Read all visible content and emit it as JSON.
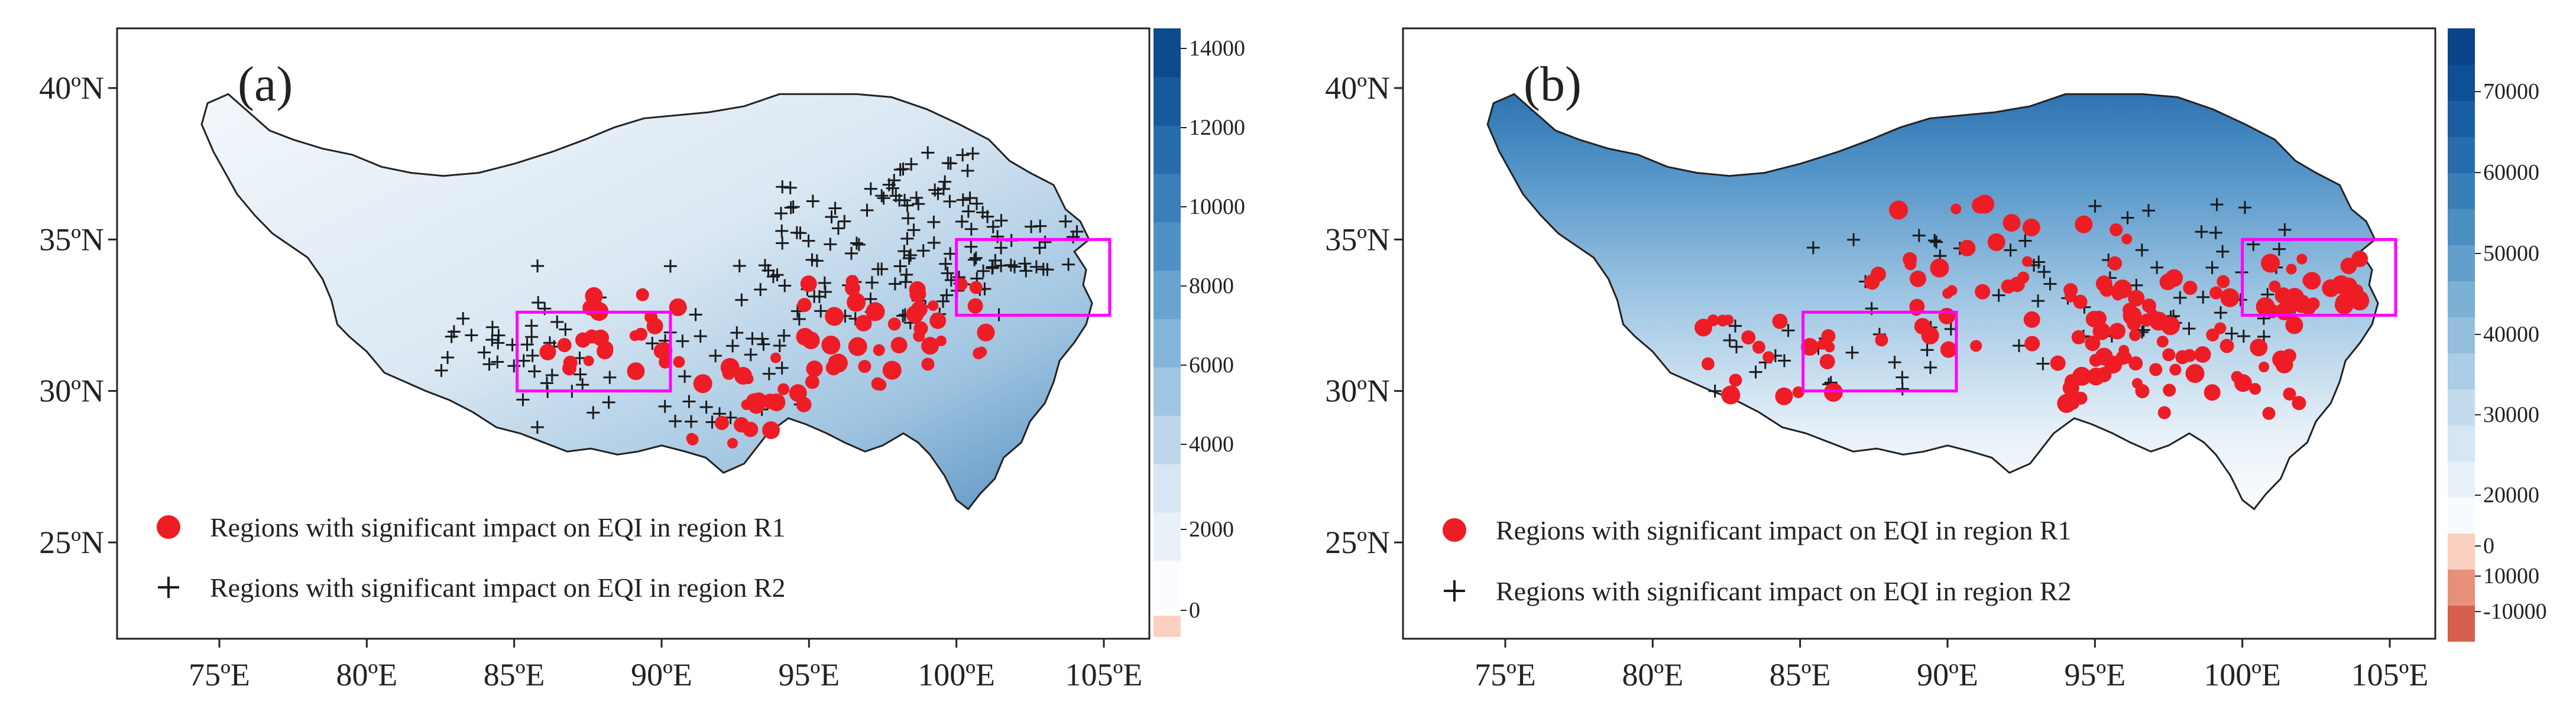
{
  "panels": [
    {
      "label": "(a)",
      "colorbar": {
        "ticks": [
          "14000",
          "12000",
          "10000",
          "8000",
          "6000",
          "4000",
          "2000",
          "0"
        ],
        "colors": [
          "#fbd0c0",
          "#fbfcff",
          "#e9f1f8",
          "#d6e6f2",
          "#bdd6ea",
          "#a0c5e1",
          "#84b5d8",
          "#69a3cf",
          "#4f91c5",
          "#3a7fb9",
          "#276dad",
          "#185a9e",
          "#0d4a8e"
        ]
      },
      "legend": {
        "r1_label": "Regions with significant impact on EQI in region R1",
        "r2_label": "Regions with significant impact on EQI in region R2"
      }
    },
    {
      "label": "(b)",
      "colorbar": {
        "ticks": [
          "70000",
          "60000",
          "50000",
          "40000",
          "30000",
          "20000",
          "10000",
          "0",
          "-10000"
        ],
        "colors": [
          "#d6604d",
          "#e7917b",
          "#fbd0c0",
          "#f7fbff",
          "#e9f1f8",
          "#d6e6f2",
          "#c3dbed",
          "#abcde5",
          "#93bfdd",
          "#7ab1d5",
          "#62a0cb",
          "#4b8fc1",
          "#387fb7",
          "#276dad",
          "#195ea1",
          "#0f4f93",
          "#0a4488"
        ]
      },
      "legend": {
        "r1_label": "Regions with significant impact on EQI in region R1",
        "r2_label": "Regions with significant impact on EQI in region R2"
      }
    }
  ],
  "axes": {
    "x_ticks": [
      "75ºE",
      "80ºE",
      "85ºE",
      "90ºE",
      "95ºE",
      "100ºE",
      "105ºE"
    ],
    "y_ticks": [
      "40ºN",
      "35ºN",
      "30ºN",
      "25ºN"
    ]
  },
  "regions": {
    "R1": {
      "lon_min": 85.1,
      "lon_max": 90.3,
      "lat_min": 30.0,
      "lat_max": 32.6
    },
    "R2": {
      "lon_min": 100.0,
      "lon_max": 105.2,
      "lat_min": 32.5,
      "lat_max": 35.0
    }
  },
  "colors": {
    "circle": "#ee1c25",
    "cross": "#1a1a1a",
    "region_box": "#ff00ff",
    "outline": "#222222"
  }
}
